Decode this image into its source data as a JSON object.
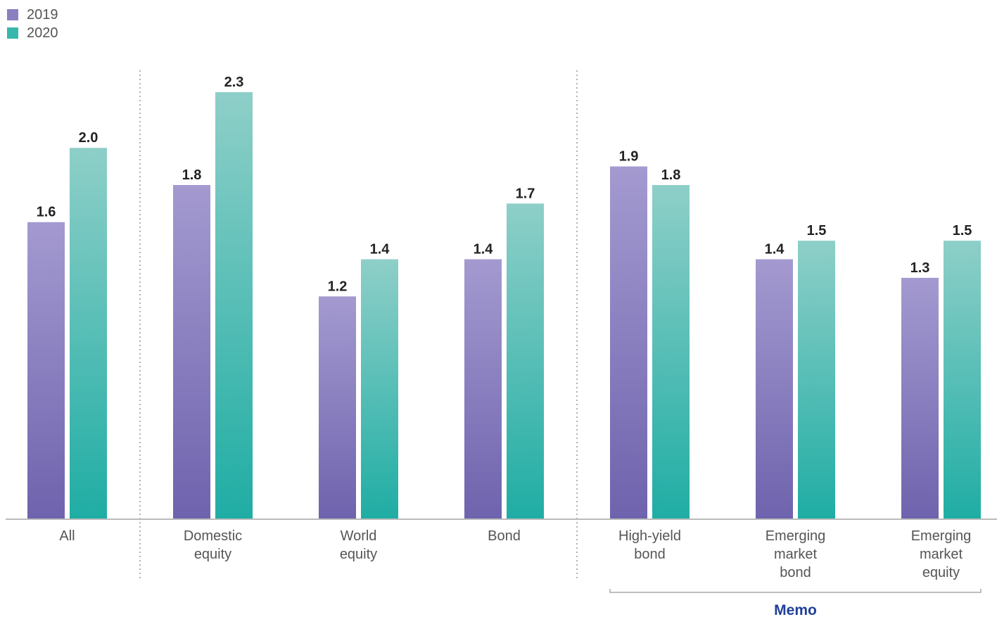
{
  "chart_data": {
    "type": "bar",
    "categories": [
      [
        "All"
      ],
      [
        "Domestic",
        "equity"
      ],
      [
        "World",
        "equity"
      ],
      [
        "Bond"
      ],
      [
        "High-yield",
        "bond"
      ],
      [
        "Emerging",
        "market",
        "bond"
      ],
      [
        "Emerging",
        "market",
        "equity"
      ]
    ],
    "series": [
      {
        "name": "2019",
        "values": [
          1.6,
          1.8,
          1.2,
          1.4,
          1.9,
          1.4,
          1.3
        ],
        "value_labels": [
          "1.6",
          "1.8",
          "1.2",
          "1.4",
          "1.9",
          "1.4",
          "1.3"
        ]
      },
      {
        "name": "2020",
        "values": [
          2.0,
          2.3,
          1.4,
          1.7,
          1.8,
          1.5,
          1.5
        ],
        "value_labels": [
          "2.0",
          "2.3",
          "1.4",
          "1.7",
          "1.8",
          "1.5",
          "1.5"
        ]
      }
    ],
    "ylim": [
      0,
      2.3
    ],
    "grid": false,
    "legend_position": "top-left",
    "separators_after_category": [
      0,
      3
    ],
    "memo_label": "Memo",
    "memo_categories": [
      4,
      5,
      6
    ],
    "colors": {
      "2019_top": "#a49ad0",
      "2019_bottom": "#6e63ad",
      "2020_top": "#8ecfc8",
      "2020_bottom": "#1fada4",
      "memo_text": "#1f3f99",
      "axis": "#bbbbbb",
      "separator": "#999999"
    }
  }
}
